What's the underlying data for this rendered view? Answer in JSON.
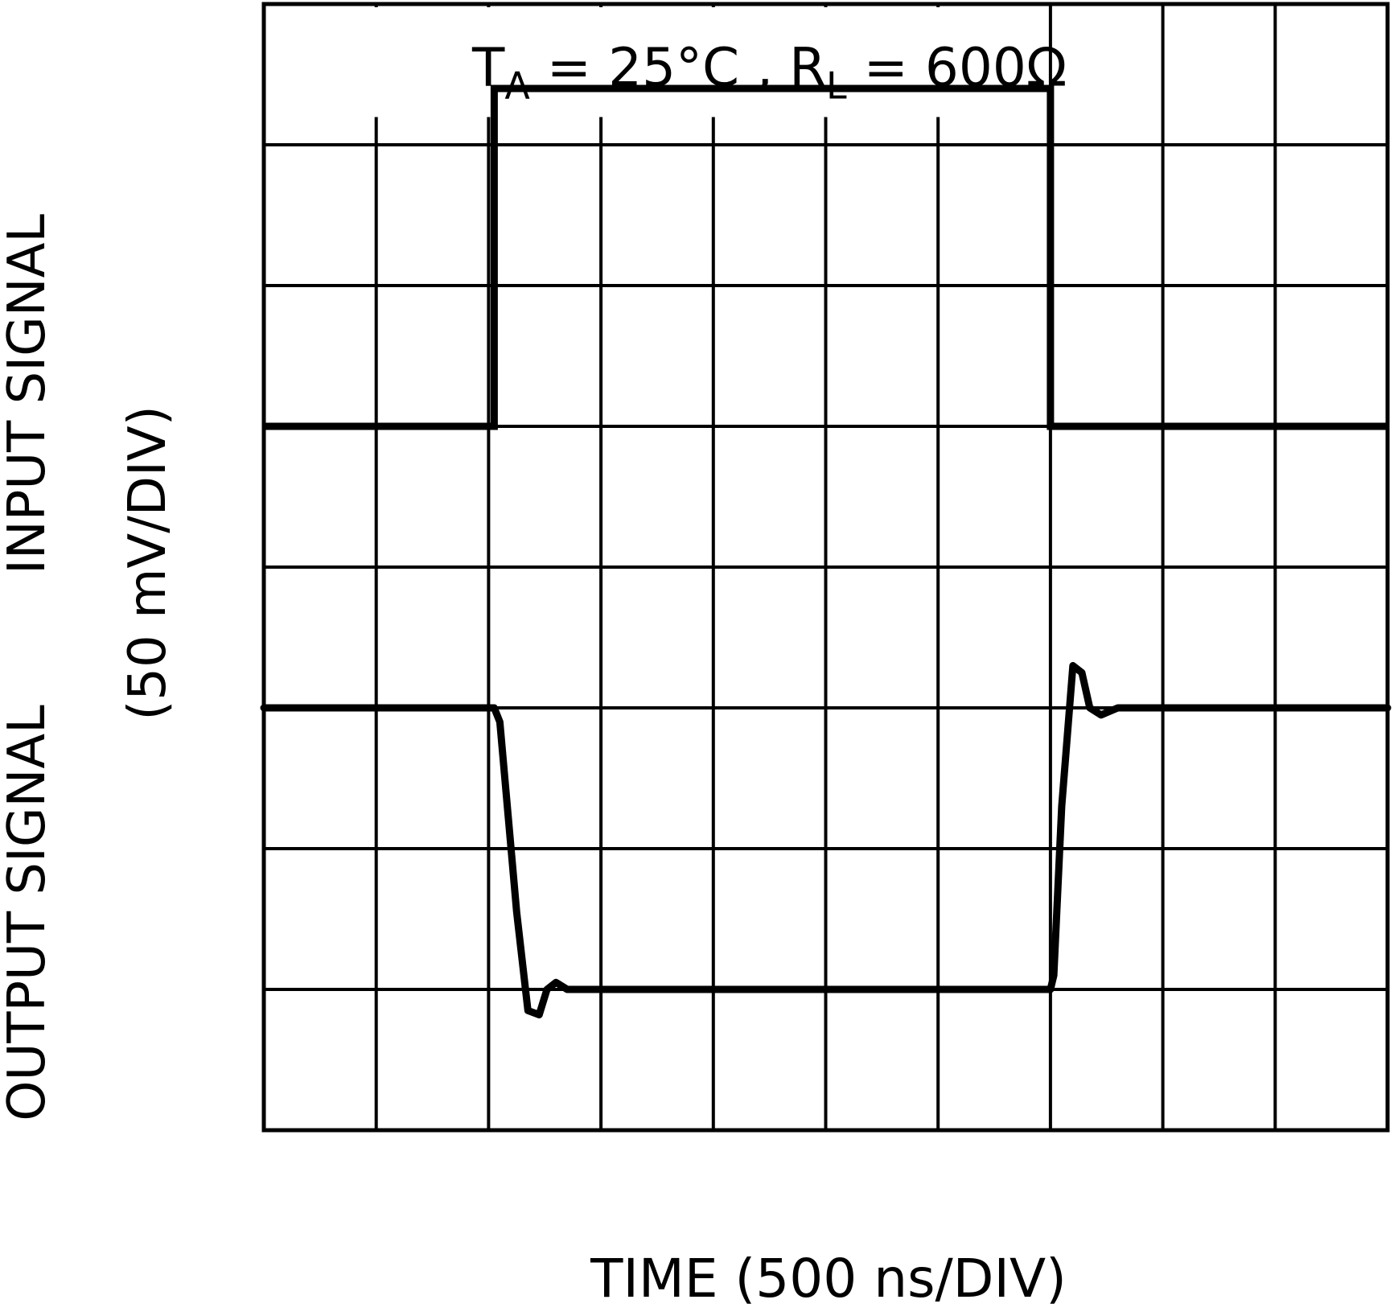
{
  "chart_data": {
    "type": "line",
    "title": "",
    "annotation": {
      "t_symbol": "T",
      "t_subscript": "A",
      "t_value": " = 25°C ,",
      "r_symbol": "R",
      "r_subscript": "L",
      "r_value": " = 600Ω"
    },
    "xlabel": "TIME (500 ns/DIV)",
    "ylabel_input": "INPUT SIGNAL",
    "ylabel_output": "OUTPUT SIGNAL",
    "ylabel_scale": "(50 mV/DIV)",
    "grid": true,
    "x_divisions": 10,
    "y_divisions": 8,
    "xlim": [
      0,
      10
    ],
    "ylim": [
      0,
      8
    ],
    "series": [
      {
        "key": "input",
        "stroke": "#000000",
        "points": [
          [
            0,
            5
          ],
          [
            2.05,
            5
          ],
          [
            2.05,
            7.4
          ],
          [
            7,
            7.4
          ],
          [
            7,
            5
          ],
          [
            10,
            5
          ]
        ]
      },
      {
        "key": "output",
        "stroke": "#000000",
        "points": [
          [
            0,
            3
          ],
          [
            2.05,
            3
          ],
          [
            2.1,
            2.9
          ],
          [
            2.25,
            1.55
          ],
          [
            2.35,
            0.85
          ],
          [
            2.45,
            0.82
          ],
          [
            2.52,
            1.0
          ],
          [
            2.6,
            1.05
          ],
          [
            2.7,
            1.0
          ],
          [
            3,
            1.0
          ],
          [
            7,
            1.0
          ],
          [
            7.03,
            1.1
          ],
          [
            7.1,
            2.3
          ],
          [
            7.2,
            3.3
          ],
          [
            7.28,
            3.25
          ],
          [
            7.35,
            3.0
          ],
          [
            7.45,
            2.95
          ],
          [
            7.6,
            3.0
          ],
          [
            10,
            3.0
          ]
        ]
      }
    ]
  }
}
